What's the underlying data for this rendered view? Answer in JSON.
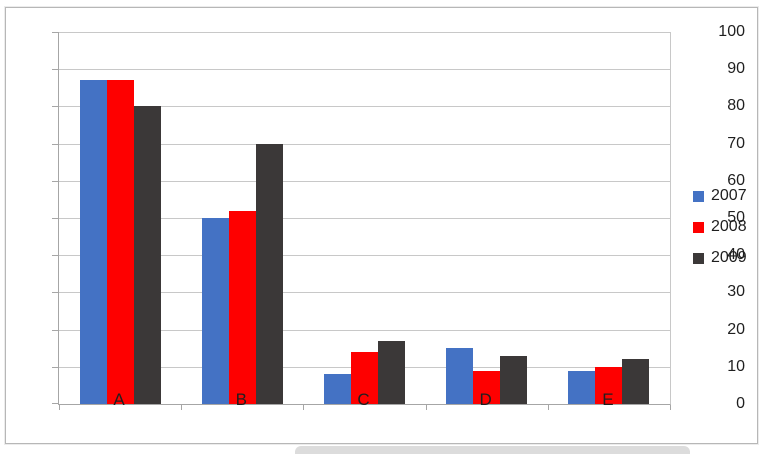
{
  "chart_data": {
    "type": "bar",
    "title": "",
    "xlabel": "",
    "ylabel": "",
    "categories": [
      "A",
      "B",
      "C",
      "D",
      "E"
    ],
    "series": [
      {
        "name": "2007",
        "color": "#4472C4",
        "values": [
          87,
          50,
          8,
          15,
          9
        ]
      },
      {
        "name": "2008",
        "color": "#FE0000",
        "values": [
          87,
          52,
          14,
          9,
          10
        ]
      },
      {
        "name": "2009",
        "color": "#3B3838",
        "values": [
          80,
          70,
          17,
          13,
          12
        ]
      }
    ],
    "ylim": [
      0,
      100
    ],
    "ytick_step": 10,
    "ytick_labels": [
      "0",
      "10",
      "20",
      "30",
      "40",
      "50",
      "60",
      "70",
      "80",
      "90",
      "100"
    ],
    "grid": "horizontal",
    "legend_position": "right"
  },
  "colors": {
    "gridline": "#c8c8c8",
    "axis": "#a6a6a6",
    "frame_border": "#b7b7b7",
    "background": "#ffffff",
    "text": "#1f1f1f",
    "watermark_strip": "#dcdcdc"
  }
}
